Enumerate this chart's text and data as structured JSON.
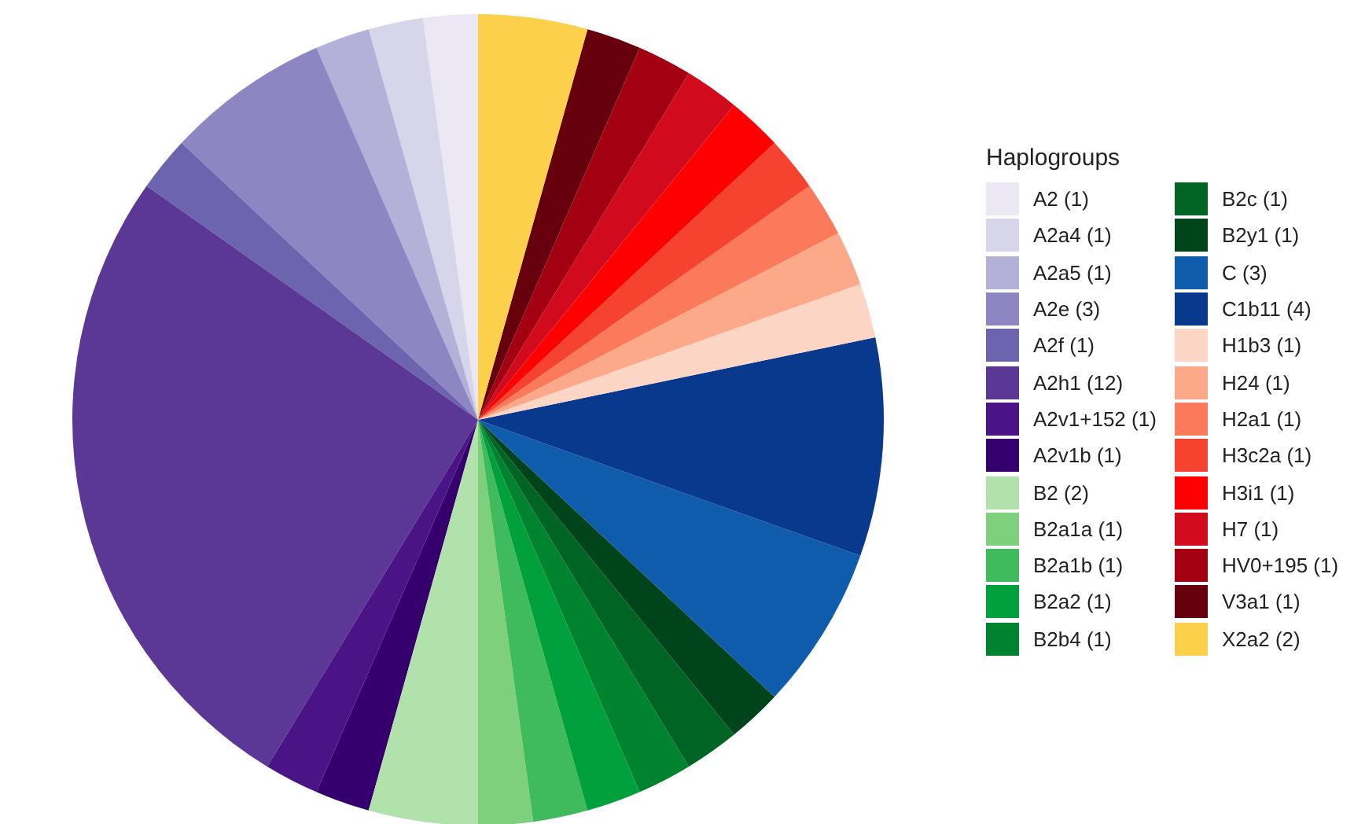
{
  "chart_data": {
    "type": "pie",
    "legend_title": "Haplogroups",
    "legend": "right",
    "categories": [
      "A2 (1)",
      "A2a4 (1)",
      "A2a5 (1)",
      "A2e (3)",
      "A2f (1)",
      "A2h1 (12)",
      "A2v1+152 (1)",
      "A2v1b (1)",
      "B2 (2)",
      "B2a1a (1)",
      "B2a1b (1)",
      "B2a2 (1)",
      "B2b4 (1)",
      "B2c (1)",
      "B2y1 (1)",
      "C (3)",
      "C1b11 (4)",
      "H1b3 (1)",
      "H24 (1)",
      "H2a1 (1)",
      "H3c2a (1)",
      "H3i1 (1)",
      "H7 (1)",
      "HV0+195 (1)",
      "V3a1 (1)",
      "X2a2 (2)"
    ],
    "values": [
      1,
      1,
      1,
      3,
      1,
      12,
      1,
      1,
      2,
      1,
      1,
      1,
      1,
      1,
      1,
      3,
      4,
      1,
      1,
      1,
      1,
      1,
      1,
      1,
      1,
      2
    ],
    "colors": [
      "#ebe7f3",
      "#d6d5ea",
      "#b3b1d8",
      "#8e86c2",
      "#6d64b0",
      "#5b3796",
      "#4a1486",
      "#35006e",
      "#b2e2ac",
      "#7fd07d",
      "#3fba5c",
      "#00a13d",
      "#00832f",
      "#006524",
      "#00441b",
      "#0f5cac",
      "#08398c",
      "#fdd5c4",
      "#fca98a",
      "#fb7a5c",
      "#f5432f",
      "#fe0000",
      "#d20a1d",
      "#a30012",
      "#67000d",
      "#fdd04c"
    ]
  }
}
